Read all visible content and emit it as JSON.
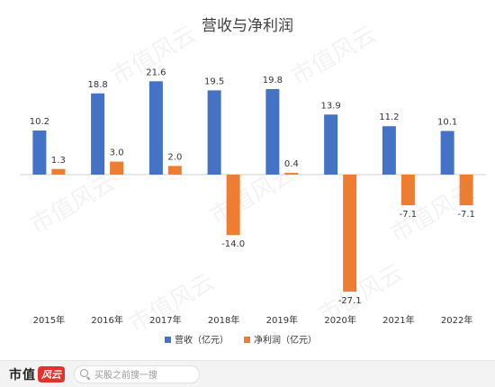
{
  "chart_data": {
    "type": "bar",
    "title": "营收与净利润",
    "categories": [
      "2015年",
      "2016年",
      "2017年",
      "2018年",
      "2019年",
      "2020年",
      "2021年",
      "2022年"
    ],
    "series": [
      {
        "name": "营收（亿元）",
        "color": "#4472c4",
        "values": [
          10.2,
          18.8,
          21.6,
          19.5,
          19.8,
          13.9,
          11.2,
          10.1
        ],
        "labels": [
          "10.2",
          "18.8",
          "21.6",
          "19.5",
          "19.8",
          "13.9",
          "11.2",
          "10.1"
        ]
      },
      {
        "name": "净利润（亿元）",
        "color": "#ed7d31",
        "values": [
          1.3,
          3.0,
          2.0,
          -14.0,
          0.4,
          -27.1,
          -7.1,
          -7.1
        ],
        "labels": [
          "1.3",
          "3.0",
          "2.0",
          "-14.0",
          "0.4",
          "-27.1",
          "-7.1",
          "-7.1"
        ]
      }
    ],
    "ylim": [
      -30,
      25
    ],
    "grid": false,
    "legend_position": "bottom"
  },
  "watermark": "市值风云",
  "footer": {
    "logo_text": "市值",
    "logo_mark": "风云",
    "search_placeholder": "买股之前搜一搜"
  },
  "colors": {
    "revenue": "#4472c4",
    "net_profit": "#ed7d31",
    "title": "#404040"
  }
}
